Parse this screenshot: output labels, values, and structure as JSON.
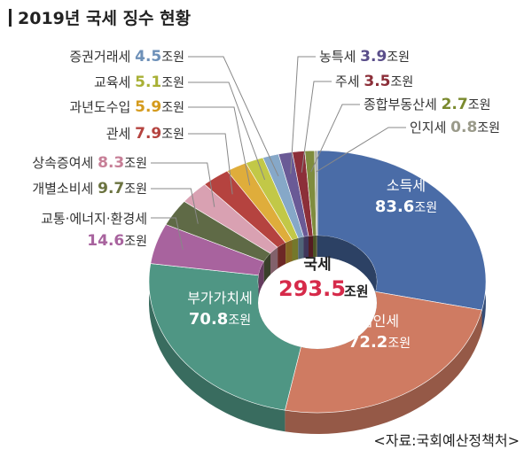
{
  "title": "2019년 국세 징수 현황",
  "source": "<자료:국회예산정책처>",
  "chart_data": {
    "type": "pie",
    "title": "2019년 국세 징수 현황",
    "unit": "조원",
    "center_label": "국세",
    "total": 293.5,
    "slices": [
      {
        "name": "소득세",
        "value": 83.6,
        "color": "#4a6ca7",
        "value_color": "#ffffff"
      },
      {
        "name": "법인세",
        "value": 72.2,
        "color": "#cf7b62",
        "value_color": "#ffffff"
      },
      {
        "name": "부가가치세",
        "value": 70.8,
        "color": "#4f9684",
        "value_color": "#ffffff"
      },
      {
        "name": "교통·에너지·환경세",
        "value": 14.6,
        "color": "#a8639e",
        "value_color": "#a8639e"
      },
      {
        "name": "개별소비세",
        "value": 9.7,
        "color": "#5f6a46",
        "value_color": "#6b7340"
      },
      {
        "name": "상속증여세",
        "value": 8.3,
        "color": "#d9a1b2",
        "value_color": "#c77f97"
      },
      {
        "name": "관세",
        "value": 7.9,
        "color": "#b5433f",
        "value_color": "#b5433f"
      },
      {
        "name": "과년도수입",
        "value": 5.9,
        "color": "#dfad3b",
        "value_color": "#d49a1c"
      },
      {
        "name": "교육세",
        "value": 5.1,
        "color": "#c2c847",
        "value_color": "#a8b035"
      },
      {
        "name": "증권거래세",
        "value": 4.5,
        "color": "#86a8c8",
        "value_color": "#6d90b8"
      },
      {
        "name": "농특세",
        "value": 3.9,
        "color": "#6a5a96",
        "value_color": "#5a4e8a"
      },
      {
        "name": "주세",
        "value": 3.5,
        "color": "#8c2f39",
        "value_color": "#8c2f39"
      },
      {
        "name": "종합부동산세",
        "value": 2.7,
        "color": "#7f8c3e",
        "value_color": "#7a8a2e"
      },
      {
        "name": "인지세",
        "value": 0.8,
        "color": "#a9aaa0",
        "value_color": "#9a9a8a"
      }
    ]
  }
}
